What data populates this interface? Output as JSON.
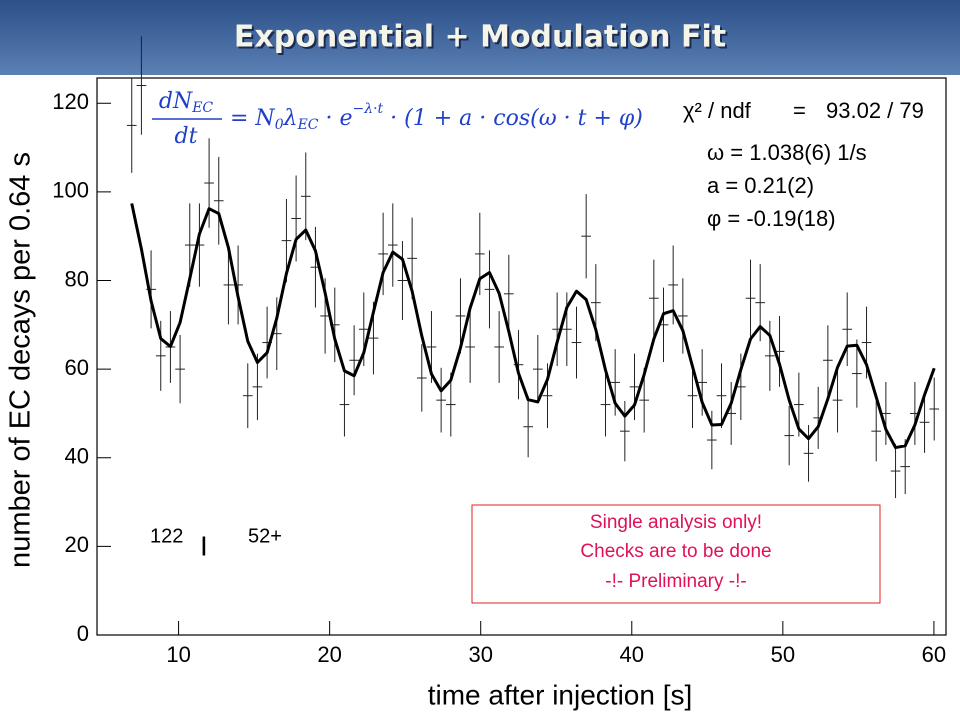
{
  "header": {
    "title": "Exponential + Modulation Fit"
  },
  "chart_data": {
    "type": "scatter",
    "xlabel": "time after injection [s]",
    "ylabel": "number of EC decays per 0.64 s",
    "xlim": [
      4.6,
      60.8
    ],
    "ylim": [
      0,
      125.7
    ],
    "xticks": [
      10,
      20,
      30,
      40,
      50,
      60
    ],
    "yticks": [
      0,
      20,
      40,
      60,
      80,
      100,
      120
    ],
    "xerror": 0.32,
    "x": [
      6.9,
      7.54,
      8.18,
      8.82,
      9.46,
      10.1,
      10.74,
      11.38,
      12.02,
      12.66,
      13.3,
      13.94,
      14.58,
      15.22,
      15.86,
      16.5,
      17.14,
      17.78,
      18.42,
      19.06,
      19.7,
      20.34,
      20.98,
      21.62,
      22.26,
      22.9,
      23.54,
      24.18,
      24.82,
      25.46,
      26.1,
      26.74,
      27.38,
      28.02,
      28.66,
      29.3,
      29.94,
      30.58,
      31.22,
      31.86,
      32.5,
      33.14,
      33.78,
      34.42,
      35.06,
      35.7,
      36.34,
      36.98,
      37.62,
      38.26,
      38.9,
      39.54,
      40.18,
      40.82,
      41.46,
      42.1,
      42.74,
      43.38,
      44.02,
      44.66,
      45.3,
      45.94,
      46.58,
      47.22,
      47.86,
      48.5,
      49.14,
      49.78,
      50.42,
      51.06,
      51.7,
      52.34,
      52.98,
      53.62,
      54.26,
      54.9,
      55.54,
      56.18,
      56.82,
      57.46,
      58.1,
      58.74,
      59.38,
      60.02
    ],
    "series": [
      {
        "color": "#222222",
        "values": [
          115,
          124,
          78,
          63,
          65,
          60,
          88,
          88,
          102,
          98,
          79,
          79,
          54,
          56,
          66,
          68,
          89,
          94,
          99,
          83,
          72,
          70,
          52,
          62,
          69,
          67,
          86,
          88,
          80,
          85,
          58,
          65,
          53,
          52,
          72,
          65,
          86,
          78,
          65,
          77,
          61,
          47,
          60,
          54,
          69,
          69,
          66,
          90,
          75,
          52,
          57,
          46,
          56,
          53,
          76,
          70,
          79,
          72,
          54,
          57,
          44,
          54,
          50,
          56,
          76,
          75,
          63,
          64,
          45,
          52,
          41,
          49,
          62,
          53,
          69,
          59,
          66,
          46,
          50,
          37,
          38,
          50,
          48,
          51
        ],
        "errors": [
          10.7,
          11.1,
          8.8,
          7.9,
          8.1,
          7.7,
          9.4,
          9.4,
          10.1,
          9.9,
          8.9,
          8.9,
          7.3,
          7.5,
          8.1,
          8.2,
          9.4,
          9.7,
          9.9,
          9.1,
          8.5,
          8.4,
          7.2,
          7.9,
          8.3,
          8.2,
          9.3,
          9.4,
          8.9,
          9.2,
          7.6,
          8.1,
          7.3,
          7.2,
          8.5,
          8.1,
          9.3,
          8.8,
          8.1,
          8.8,
          7.8,
          6.9,
          7.7,
          7.3,
          8.3,
          8.3,
          8.1,
          9.5,
          8.7,
          7.2,
          7.5,
          6.8,
          7.5,
          7.3,
          8.7,
          8.4,
          8.9,
          8.5,
          7.3,
          7.5,
          6.6,
          7.3,
          7.1,
          7.5,
          8.7,
          8.7,
          7.9,
          8.0,
          6.7,
          7.2,
          6.4,
          7.0,
          7.9,
          7.3,
          8.3,
          7.7,
          8.1,
          6.8,
          7.1,
          6.1,
          6.2,
          7.1,
          6.9,
          7.1
        ]
      },
      {
        "type": "line",
        "color": "#000000",
        "values": [
          97.4,
          87.1,
          75.4,
          66.9,
          65.1,
          70.5,
          80.4,
          90.5,
          96.2,
          95.1,
          87.4,
          76.3,
          66.3,
          61.5,
          63.7,
          71.5,
          81.6,
          89.3,
          91.4,
          86.7,
          77.2,
          66.8,
          59.6,
          58.5,
          63.7,
          72.9,
          81.8,
          86.4,
          84.8,
          77.6,
          67.5,
          58.9,
          55.1,
          57.5,
          64.8,
          73.8,
          80.4,
          81.8,
          77.1,
          68.5,
          59.1,
          53.1,
          52.6,
          57.7,
          66.1,
          73.9,
          77.6,
          75.7,
          68.9,
          59.8,
          52.3,
          49.4,
          51.9,
          58.8,
          66.8,
          72.5,
          73.2,
          68.7,
          60.6,
          52.5,
          47.4,
          47.5,
          52.3,
          59.9,
          66.8,
          69.6,
          67.6,
          61.1,
          53.0,
          46.5,
          44.3,
          47.0,
          53.3,
          60.4,
          65.2,
          65.4,
          61.0,
          53.7,
          46.4,
          42.3,
          42.7,
          47.4,
          54.2,
          60.2
        ]
      }
    ],
    "formula": {
      "numerator": "dN",
      "numerator_sub": "EC",
      "denominator": "dt",
      "rhs": "= N",
      "rhs_sub0": "0",
      "rhs_lambda": "λ",
      "rhs_sub": "EC",
      "rhs2": " · e",
      "exponent": "−λ·t",
      "rhs3": " · (1 + a · cos(ω · t + φ)"
    },
    "stats": {
      "chi_label": "χ² / ndf",
      "chi_eq": "=",
      "chi_value": "93.02 / 79",
      "omega": "ω = 1.038(6) 1/s",
      "a": "a = 0.21(2)",
      "phi": "φ = -0.19(18)"
    },
    "isotope": {
      "mass": "122",
      "element": "I",
      "charge": "52+"
    },
    "notice": [
      "Single analysis only!",
      "Checks are to be done",
      "-!- Preliminary -!-"
    ]
  }
}
